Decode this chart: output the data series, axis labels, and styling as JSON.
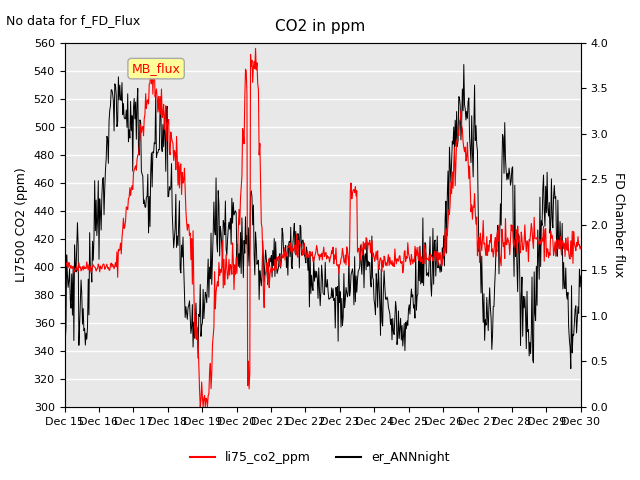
{
  "title": "CO2 in ppm",
  "top_left_text": "No data for f_FD_Flux",
  "ylabel_left": "LI7500 CO2 (ppm)",
  "ylabel_right": "FD Chamber flux",
  "ylim_left": [
    300,
    560
  ],
  "ylim_right": [
    0.0,
    4.0
  ],
  "yticks_left": [
    300,
    320,
    340,
    360,
    380,
    400,
    420,
    440,
    460,
    480,
    500,
    520,
    540,
    560
  ],
  "yticks_right": [
    0.0,
    0.5,
    1.0,
    1.5,
    2.0,
    2.5,
    3.0,
    3.5,
    4.0
  ],
  "xlabel_ticks": [
    "Dec 15",
    "Dec 16",
    "Dec 17",
    "Dec 18",
    "Dec 19",
    "Dec 20",
    "Dec 21",
    "Dec 22",
    "Dec 23",
    "Dec 24",
    "Dec 25",
    "Dec 26",
    "Dec 27",
    "Dec 28",
    "Dec 29",
    "Dec 30"
  ],
  "legend_label_red": "li75_co2_ppm",
  "legend_label_black": "er_ANNnight",
  "annotation_label": "MB_flux",
  "color_red": "#FF0000",
  "color_black": "#000000",
  "background_color": "#FFFFFF",
  "plot_bg_color": "#E8E8E8",
  "annotation_box_color": "#FFFF99",
  "annotation_box_edge": "#AAAAAA",
  "grid_color": "#FFFFFF",
  "title_fontsize": 11,
  "label_fontsize": 9,
  "tick_fontsize": 8
}
